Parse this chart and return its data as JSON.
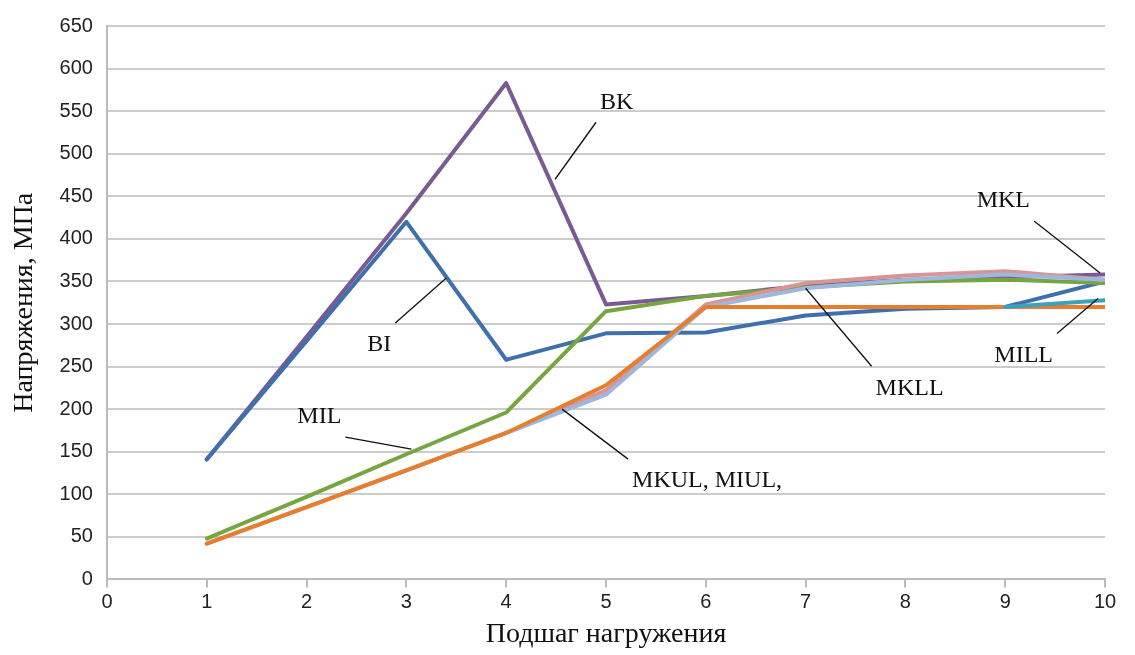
{
  "chart_data": {
    "type": "line",
    "xlabel": "Подшаг нагружения",
    "ylabel": "Напряжения, МПа",
    "x": [
      1,
      2,
      3,
      4,
      5,
      6,
      7,
      8,
      9,
      10
    ],
    "xlim": [
      0,
      10
    ],
    "xticks": [
      0,
      1,
      2,
      3,
      4,
      5,
      6,
      7,
      8,
      9,
      10
    ],
    "ylim": [
      0,
      650
    ],
    "yticks": [
      0,
      50,
      100,
      150,
      200,
      250,
      300,
      350,
      400,
      450,
      500,
      550,
      600,
      650
    ],
    "grid": "y",
    "legend": false,
    "marker": "none",
    "line_style": "solid",
    "series": [
      {
        "color": "#3aa2bf",
        "values": [
          null,
          null,
          null,
          null,
          null,
          null,
          null,
          null,
          320,
          328
        ]
      },
      {
        "color": "#e57f2f",
        "values": [
          42,
          85,
          128,
          172,
          228,
          320,
          320,
          320,
          320,
          320
        ]
      },
      {
        "color": "#9db7df",
        "values": [
          null,
          null,
          null,
          172,
          217,
          320,
          342,
          352,
          358,
          352
        ]
      },
      {
        "color": "#d99594",
        "values": [
          42,
          85,
          128,
          172,
          222,
          323,
          348,
          357,
          362,
          352
        ]
      },
      {
        "color": "#77a542",
        "values": [
          48,
          97,
          147,
          196,
          315,
          333,
          343,
          350,
          352,
          348
        ]
      },
      {
        "color": "#3f6fad",
        "values": [
          141,
          280,
          420,
          258,
          289,
          290,
          310,
          318,
          320,
          350
        ]
      },
      {
        "color": "#7a5a93",
        "values": [
          141,
          285,
          430,
          583,
          323,
          333,
          345,
          352,
          355,
          358
        ]
      }
    ],
    "annotations": [
      {
        "text": "BK",
        "x": 4.49,
        "y": 470
      },
      {
        "text": "BI",
        "x": 3.4,
        "y": 354
      },
      {
        "text": "MIL",
        "x": 3.05,
        "y": 153
      },
      {
        "text": "MKUL, MIUL,",
        "x": 4.56,
        "y": 200
      },
      {
        "text": "MKLL",
        "x": 7,
        "y": 342
      },
      {
        "text": "MILL",
        "x": 9.93,
        "y": 330
      },
      {
        "text": "MKL",
        "x": 9.95,
        "y": 360
      }
    ]
  }
}
